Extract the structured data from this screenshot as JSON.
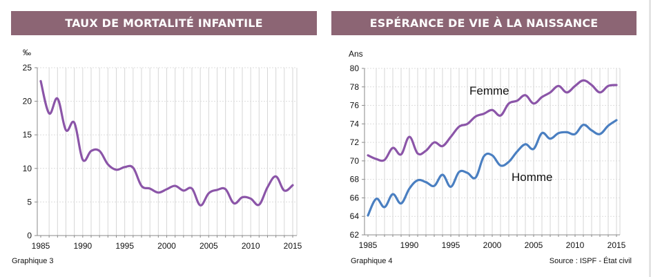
{
  "headers": {
    "left": "TAUX DE MORTALITÉ INFANTILE",
    "right": "ESPÉRANCE DE VIE À LA NAISSANCE"
  },
  "captions": {
    "left": "Graphique 3",
    "right": "Graphique 4",
    "source": "Source : ISPF - État civil"
  },
  "colors": {
    "header_bg": "#8c6574",
    "femme": "#8b55a8",
    "homme": "#4a7fc1",
    "mortalite": "#8b55a8"
  },
  "chart_data": [
    {
      "type": "line",
      "title": "TAUX DE MORTALITÉ INFANTILE",
      "ylabel": "‰",
      "xlim": [
        1985,
        2015
      ],
      "ylim": [
        0,
        25
      ],
      "x_ticks": [
        "1985",
        "1990",
        "1995",
        "2000",
        "2005",
        "2010",
        "2015"
      ],
      "y_ticks": [
        "0",
        "5",
        "10",
        "15",
        "20",
        "25"
      ],
      "grid": "vertical yearly, horizontal dotted",
      "x": [
        1985,
        1986,
        1987,
        1988,
        1989,
        1990,
        1991,
        1992,
        1993,
        1994,
        1995,
        1996,
        1997,
        1998,
        1999,
        2000,
        2001,
        2002,
        2003,
        2004,
        2005,
        2006,
        2007,
        2008,
        2009,
        2010,
        2011,
        2012,
        2013,
        2014,
        2015
      ],
      "series": [
        {
          "values": [
            23.0,
            18.2,
            20.4,
            15.7,
            16.8,
            11.3,
            12.6,
            12.6,
            10.6,
            9.8,
            10.2,
            10.1,
            7.4,
            7.0,
            6.4,
            6.9,
            7.4,
            6.7,
            7.0,
            4.5,
            6.3,
            6.8,
            6.9,
            4.8,
            5.7,
            5.5,
            4.6,
            7.2,
            8.8,
            6.7,
            7.5
          ]
        }
      ]
    },
    {
      "type": "line",
      "title": "ESPÉRANCE DE VIE À LA NAISSANCE",
      "ylabel": "Ans",
      "xlim": [
        1985,
        2015
      ],
      "ylim": [
        62,
        80
      ],
      "x_ticks": [
        "1985",
        "1990",
        "1995",
        "2000",
        "2005",
        "2010",
        "2015"
      ],
      "y_ticks": [
        "62",
        "64",
        "66",
        "68",
        "70",
        "72",
        "74",
        "76",
        "78",
        "80"
      ],
      "grid": "vertical yearly, horizontal dotted",
      "x": [
        1985,
        1986,
        1987,
        1988,
        1989,
        1990,
        1991,
        1992,
        1993,
        1994,
        1995,
        1996,
        1997,
        1998,
        1999,
        2000,
        2001,
        2002,
        2003,
        2004,
        2005,
        2006,
        2007,
        2008,
        2009,
        2010,
        2011,
        2012,
        2013,
        2014,
        2015
      ],
      "series": [
        {
          "name": "Femme",
          "values": [
            70.6,
            70.2,
            70.1,
            71.4,
            70.7,
            72.6,
            70.8,
            71.1,
            72.0,
            71.6,
            72.6,
            73.7,
            74.0,
            74.8,
            75.1,
            75.5,
            74.9,
            76.2,
            76.5,
            77.1,
            76.2,
            76.9,
            77.4,
            78.1,
            77.4,
            78.1,
            78.7,
            78.2,
            77.4,
            78.1,
            78.2
          ]
        },
        {
          "name": "Homme",
          "values": [
            64.1,
            65.9,
            65.0,
            66.4,
            65.4,
            67.0,
            67.9,
            67.7,
            67.3,
            68.5,
            67.2,
            68.8,
            68.7,
            68.2,
            70.5,
            70.6,
            69.5,
            69.9,
            71.0,
            71.8,
            71.3,
            73.0,
            72.4,
            73.0,
            73.1,
            72.9,
            73.9,
            73.3,
            72.9,
            73.8,
            74.4
          ]
        }
      ]
    }
  ]
}
